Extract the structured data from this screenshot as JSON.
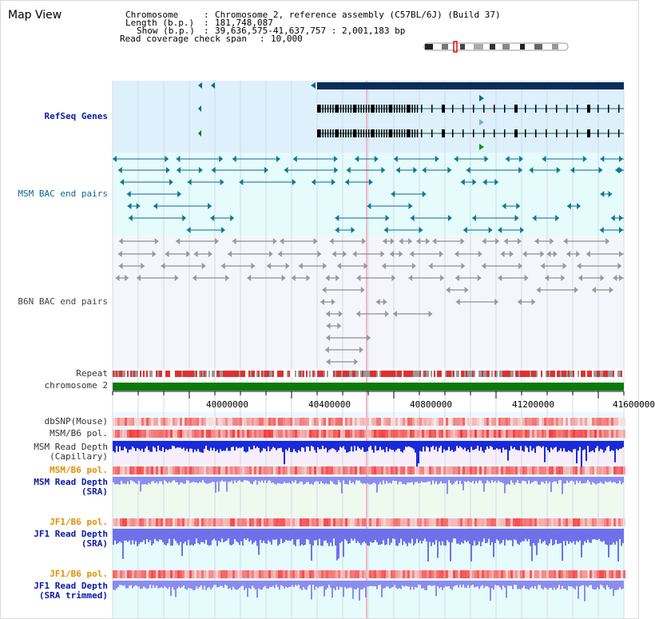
{
  "view_title": "Map View",
  "info": {
    "chromosome_key": "Chromosome",
    "chromosome_val": "Chromosome 2, reference assembly (C57BL/6J) (Build 37)",
    "length_key": "Length (b.p.)",
    "length_val": "181,748,087",
    "show_key": "Show (b.p.)",
    "show_val": "39,636,575-41,637,757 : 2,001,183 bp",
    "span_key": "Read coverage check span",
    "span_val": "10,000"
  },
  "tracks": {
    "refseq": "RefSeq Genes",
    "msm_bac": "MSM BAC end pairs",
    "b6n_bac": "B6N BAC end pairs",
    "repeat": "Repeat",
    "chromosome": "chromosome 2",
    "dbsnp": "dbSNP(Mouse)",
    "msm_b6_pol": "MSM/B6 pol.",
    "msm_depth_cap_1": "MSM Read Depth",
    "msm_depth_cap_2": "(Capillary)",
    "msm_b6_pol_2": "MSM/B6 pol.",
    "msm_depth_sra_1": "MSM Read Depth",
    "msm_depth_sra_2": "(SRA)",
    "jf1_b6_pol": "JF1/B6 pol.",
    "jf1_depth_sra_1": "JF1 Read Depth",
    "jf1_depth_sra_2": "(SRA)",
    "jf1_b6_pol_2": "JF1/B6 pol.",
    "jf1_depth_trim_1": "JF1 Read Depth",
    "jf1_depth_trim_2": "(SRA trimmed)"
  },
  "axis_ticks": [
    "40000000",
    "40400000",
    "40800000",
    "41200000",
    "41600000"
  ],
  "colors": {
    "refseq_bg": "#ddf0fb",
    "bac_bg": "#e6fbfb",
    "gene_bar": "#0b2d5a",
    "chromosome_bar": "#0a7a0a",
    "label_blue": "#0a1aa8",
    "label_orange": "#e09000"
  }
}
